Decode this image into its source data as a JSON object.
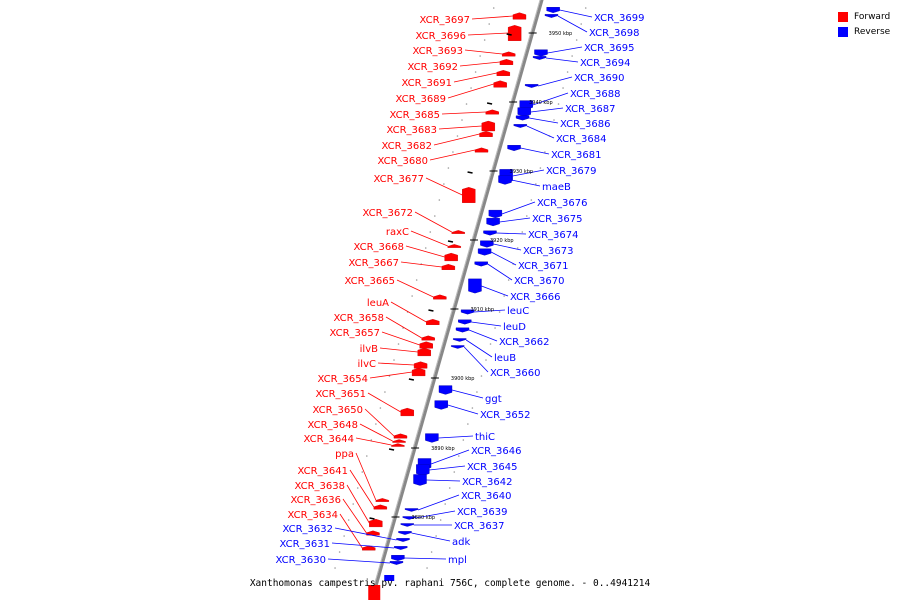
{
  "caption": "Xanthomonas campestris pv. raphani 756C, complete genome. - 0..4941214",
  "colors": {
    "forward": "#ff0000",
    "reverse": "#0000ff",
    "backbone": "#888888"
  },
  "legend": [
    {
      "label": "Forward",
      "color": "#ff0000"
    },
    {
      "label": "Reverse",
      "color": "#0000ff"
    }
  ],
  "ticks": [
    "3950 kbp",
    "3940 kbp",
    "3930 kbp",
    "3920 kbp",
    "3910 kbp",
    "3900 kbp",
    "3890 kbp",
    "3880 kbp"
  ],
  "forward_genes": [
    "XCR_3697",
    "XCR_3696",
    "XCR_3693",
    "XCR_3692",
    "XCR_3691",
    "XCR_3689",
    "XCR_3685",
    "XCR_3683",
    "XCR_3682",
    "XCR_3680",
    "XCR_3677",
    "XCR_3672",
    "raxC",
    "XCR_3668",
    "XCR_3667",
    "XCR_3665",
    "leuA",
    "XCR_3658",
    "XCR_3657",
    "ilvB",
    "ilvC",
    "XCR_3654",
    "XCR_3651",
    "XCR_3650",
    "XCR_3648",
    "XCR_3644",
    "ppa",
    "XCR_3641",
    "XCR_3638",
    "XCR_3636",
    "XCR_3634"
  ],
  "reverse_genes": [
    "XCR_3699",
    "XCR_3698",
    "XCR_3695",
    "XCR_3694",
    "XCR_3690",
    "XCR_3688",
    "XCR_3687",
    "XCR_3686",
    "XCR_3684",
    "XCR_3681",
    "XCR_3679",
    "maeB",
    "XCR_3676",
    "XCR_3675",
    "XCR_3674",
    "XCR_3673",
    "XCR_3671",
    "XCR_3670",
    "XCR_3666",
    "leuC",
    "leuD",
    "XCR_3662",
    "leuB",
    "XCR_3660",
    "ggt",
    "XCR_3652",
    "thiC",
    "XCR_3646",
    "XCR_3645",
    "XCR_3642",
    "XCR_3640",
    "XCR_3639",
    "XCR_3637",
    "adk",
    "mpl",
    "XCR_3632",
    "XCR_3631",
    "XCR_3630"
  ]
}
